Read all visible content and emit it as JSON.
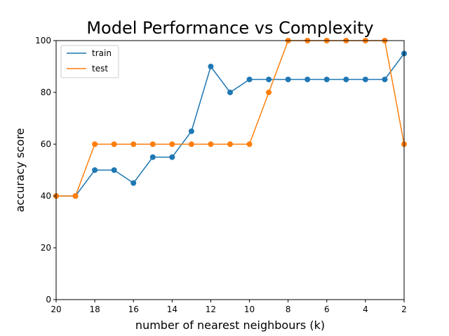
{
  "chart_data": {
    "type": "line",
    "title": "Model Performance vs Complexity",
    "xlabel": "number of nearest neighbours (k)",
    "ylabel": "accuracy score",
    "x": [
      20,
      19,
      18,
      17,
      16,
      15,
      14,
      13,
      12,
      11,
      10,
      9,
      8,
      7,
      6,
      5,
      4,
      3,
      2
    ],
    "xlim": [
      20,
      2
    ],
    "ylim": [
      0,
      100
    ],
    "x_inverted": true,
    "xticks": [
      20,
      18,
      16,
      14,
      12,
      10,
      8,
      6,
      4,
      2
    ],
    "yticks": [
      0,
      20,
      40,
      60,
      80,
      100
    ],
    "legend_position": "top-left",
    "grid": false,
    "series": [
      {
        "name": "train",
        "color": "#1f77b4",
        "marker": "circle",
        "values": [
          40,
          40,
          50,
          50,
          45,
          55,
          55,
          65,
          90,
          80,
          85,
          85,
          85,
          85,
          85,
          85,
          85,
          85,
          95
        ]
      },
      {
        "name": "test",
        "color": "#ff7f0e",
        "marker": "circle",
        "values": [
          40,
          40,
          60,
          60,
          60,
          60,
          60,
          60,
          60,
          60,
          60,
          80,
          100,
          100,
          100,
          100,
          100,
          100,
          60
        ]
      }
    ]
  }
}
